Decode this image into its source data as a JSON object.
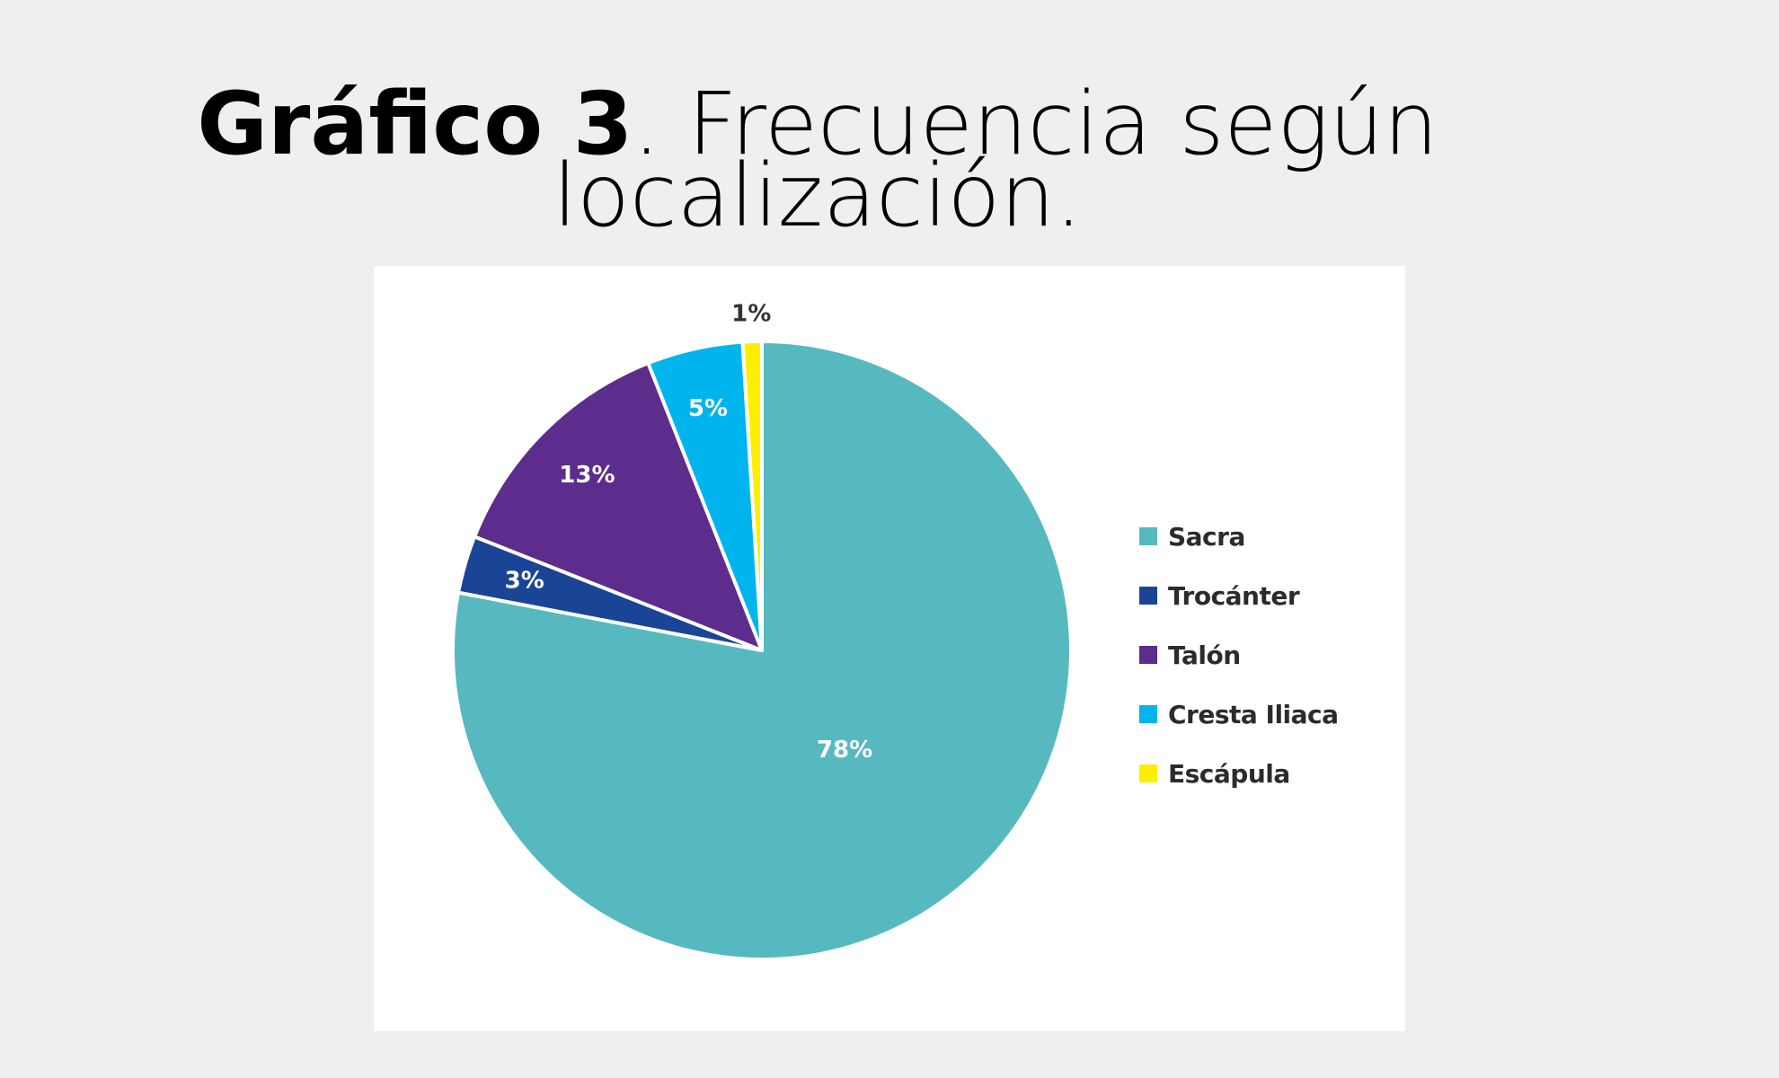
{
  "header": {
    "title_bold": "Gráfico 3",
    "title_rest": ". Frecuencia según",
    "title_line2": "localización."
  },
  "chart_data": {
    "type": "pie",
    "categories": [
      "Sacra",
      "Trocánter",
      "Talón",
      "Cresta Iliaca",
      "Escápula"
    ],
    "values": [
      78,
      3,
      13,
      5,
      1
    ],
    "data_labels": [
      "78%",
      "3%",
      "13%",
      "5%",
      "1%"
    ],
    "colors": [
      "#57b9c0",
      "#1a4596",
      "#5c2d8c",
      "#00b4ee",
      "#ffee00"
    ],
    "label_colors": [
      "#ffffff",
      "#ffffff",
      "#ffffff",
      "#ffffff",
      "#333333"
    ],
    "legend_position": "right",
    "start": "12 o'clock",
    "direction": "clockwise"
  }
}
